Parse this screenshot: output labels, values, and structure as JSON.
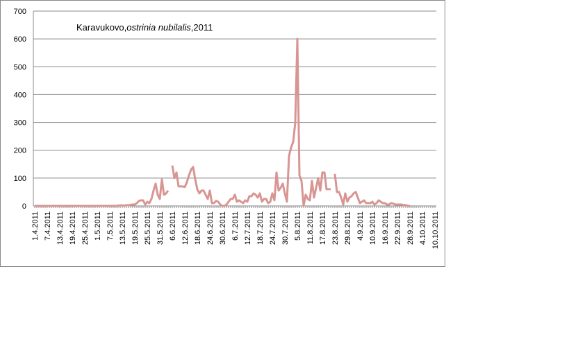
{
  "chart_data": {
    "type": "line",
    "title": [
      "Karavukovo,",
      "ostrinia nubilalis",
      ",2011"
    ],
    "categories": [
      "1.4.2011",
      null,
      null,
      null,
      null,
      null,
      "7.4.2011",
      null,
      null,
      null,
      null,
      null,
      "13.4.2011",
      null,
      null,
      null,
      null,
      null,
      "19.4.2011",
      null,
      null,
      null,
      null,
      null,
      "25.4.2011",
      null,
      null,
      null,
      null,
      null,
      "1.5.2011",
      null,
      null,
      null,
      null,
      null,
      "7.5.2011",
      null,
      null,
      null,
      null,
      null,
      "13.5.2011",
      null,
      null,
      null,
      null,
      null,
      "19.5.2011",
      null,
      null,
      null,
      null,
      null,
      "25.5.2011",
      null,
      null,
      null,
      null,
      null,
      "31.5.2011",
      null,
      null,
      null,
      null,
      null,
      "6.6.2011",
      null,
      null,
      null,
      null,
      null,
      "12.6.2011",
      null,
      null,
      null,
      null,
      null,
      "18.6.2011",
      null,
      null,
      null,
      null,
      null,
      "24.6.2011",
      null,
      null,
      null,
      null,
      null,
      "30.6.2011",
      null,
      null,
      null,
      null,
      null,
      "6.7.2011",
      null,
      null,
      null,
      null,
      null,
      "12.7.2011",
      null,
      null,
      null,
      null,
      null,
      "18.7.2011",
      null,
      null,
      null,
      null,
      null,
      "24.7.2011",
      null,
      null,
      null,
      null,
      null,
      "30.7.2011",
      null,
      null,
      null,
      null,
      null,
      "5.8.2011",
      null,
      null,
      null,
      null,
      null,
      "11.8.2011",
      null,
      null,
      null,
      null,
      null,
      "17.8.2011",
      null,
      null,
      null,
      null,
      null,
      "23.8.2011",
      null,
      null,
      null,
      null,
      null,
      "29.8.2011",
      null,
      null,
      null,
      null,
      null,
      "4.9.2011",
      null,
      null,
      null,
      null,
      null,
      "10.9.2011",
      null,
      null,
      null,
      null,
      null,
      "16.9.2011",
      null,
      null,
      null,
      null,
      null,
      "22.9.2011",
      null,
      null,
      null,
      null,
      null,
      "28.9.2011",
      null,
      null,
      null,
      null,
      null,
      "4.10.2011",
      null,
      null,
      null,
      null,
      null,
      "10.10.2011"
    ],
    "series": [
      {
        "color": "#d89592",
        "values": [
          0,
          0,
          0,
          0,
          0,
          0,
          0,
          0,
          0,
          0,
          0,
          0,
          0,
          0,
          0,
          0,
          0,
          0,
          0,
          0,
          0,
          0,
          0,
          0,
          0,
          0,
          0,
          0,
          0,
          0,
          0,
          0,
          0,
          0,
          0,
          0,
          0,
          0,
          0,
          0,
          1,
          2,
          2,
          1,
          3,
          2,
          4,
          5,
          5,
          10,
          18,
          20,
          20,
          5,
          15,
          10,
          25,
          55,
          80,
          40,
          25,
          95,
          40,
          45,
          55,
          null,
          145,
          100,
          120,
          70,
          70,
          70,
          68,
          85,
          110,
          130,
          140,
          95,
          60,
          45,
          55,
          55,
          40,
          25,
          55,
          10,
          10,
          18,
          15,
          5,
          0,
          0,
          5,
          15,
          25,
          25,
          40,
          15,
          20,
          15,
          10,
          20,
          15,
          35,
          35,
          45,
          40,
          30,
          45,
          15,
          25,
          25,
          10,
          15,
          45,
          20,
          120,
          55,
          65,
          80,
          45,
          15,
          180,
          210,
          230,
          300,
          600,
          110,
          90,
          0,
          40,
          25,
          20,
          90,
          30,
          65,
          100,
          55,
          120,
          120,
          60,
          60,
          60,
          null,
          115,
          50,
          50,
          30,
          5,
          45,
          15,
          30,
          35,
          45,
          50,
          30,
          10,
          15,
          20,
          10,
          10,
          10,
          15,
          5,
          10,
          20,
          15,
          10,
          10,
          5,
          5,
          10,
          8,
          5,
          5,
          5,
          5,
          3,
          3,
          0,
          0,
          null,
          null,
          null,
          null,
          null,
          null,
          null,
          null,
          null,
          null,
          null,
          null
        ]
      }
    ],
    "ylim": [
      0,
      700
    ],
    "yticks": [
      0,
      100,
      200,
      300,
      400,
      500,
      600,
      700
    ],
    "grid": true
  }
}
